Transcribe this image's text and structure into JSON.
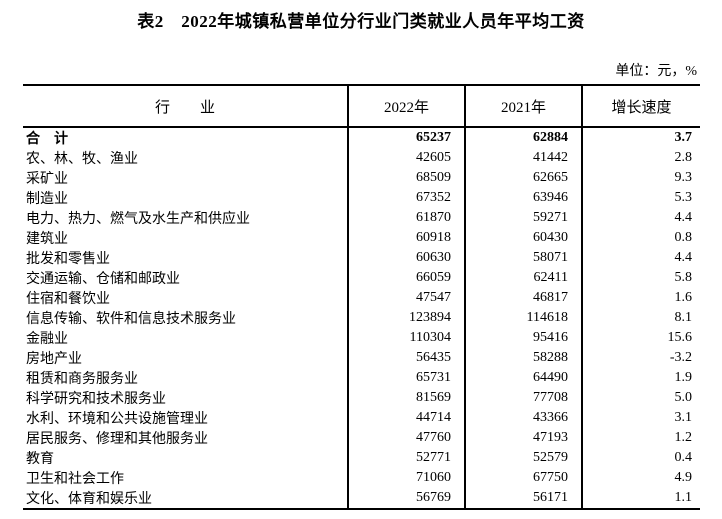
{
  "title": "表2　2022年城镇私营单位分行业门类就业人员年平均工资",
  "unit_note": "单位：元，%",
  "colors": {
    "text": "#000000",
    "border": "#000000",
    "background": "#ffffff"
  },
  "table": {
    "columns": [
      "行　　业",
      "2022年",
      "2021年",
      "增长速度"
    ],
    "rows": [
      {
        "industry": "合　计",
        "y2022": "65237",
        "y2021": "62884",
        "growth": "3.7",
        "bold": true
      },
      {
        "industry": "农、林、牧、渔业",
        "y2022": "42605",
        "y2021": "41442",
        "growth": "2.8"
      },
      {
        "industry": "采矿业",
        "y2022": "68509",
        "y2021": "62665",
        "growth": "9.3"
      },
      {
        "industry": "制造业",
        "y2022": "67352",
        "y2021": "63946",
        "growth": "5.3"
      },
      {
        "industry": "电力、热力、燃气及水生产和供应业",
        "y2022": "61870",
        "y2021": "59271",
        "growth": "4.4"
      },
      {
        "industry": "建筑业",
        "y2022": "60918",
        "y2021": "60430",
        "growth": "0.8"
      },
      {
        "industry": "批发和零售业",
        "y2022": "60630",
        "y2021": "58071",
        "growth": "4.4"
      },
      {
        "industry": "交通运输、仓储和邮政业",
        "y2022": "66059",
        "y2021": "62411",
        "growth": "5.8"
      },
      {
        "industry": "住宿和餐饮业",
        "y2022": "47547",
        "y2021": "46817",
        "growth": "1.6"
      },
      {
        "industry": "信息传输、软件和信息技术服务业",
        "y2022": "123894",
        "y2021": "114618",
        "growth": "8.1"
      },
      {
        "industry": "金融业",
        "y2022": "110304",
        "y2021": "95416",
        "growth": "15.6"
      },
      {
        "industry": "房地产业",
        "y2022": "56435",
        "y2021": "58288",
        "growth": "-3.2"
      },
      {
        "industry": "租赁和商务服务业",
        "y2022": "65731",
        "y2021": "64490",
        "growth": "1.9"
      },
      {
        "industry": "科学研究和技术服务业",
        "y2022": "81569",
        "y2021": "77708",
        "growth": "5.0"
      },
      {
        "industry": "水利、环境和公共设施管理业",
        "y2022": "44714",
        "y2021": "43366",
        "growth": "3.1"
      },
      {
        "industry": "居民服务、修理和其他服务业",
        "y2022": "47760",
        "y2021": "47193",
        "growth": "1.2"
      },
      {
        "industry": "教育",
        "y2022": "52771",
        "y2021": "52579",
        "growth": "0.4"
      },
      {
        "industry": "卫生和社会工作",
        "y2022": "71060",
        "y2021": "67750",
        "growth": "4.9"
      },
      {
        "industry": "文化、体育和娱乐业",
        "y2022": "56769",
        "y2021": "56171",
        "growth": "1.1"
      }
    ]
  }
}
